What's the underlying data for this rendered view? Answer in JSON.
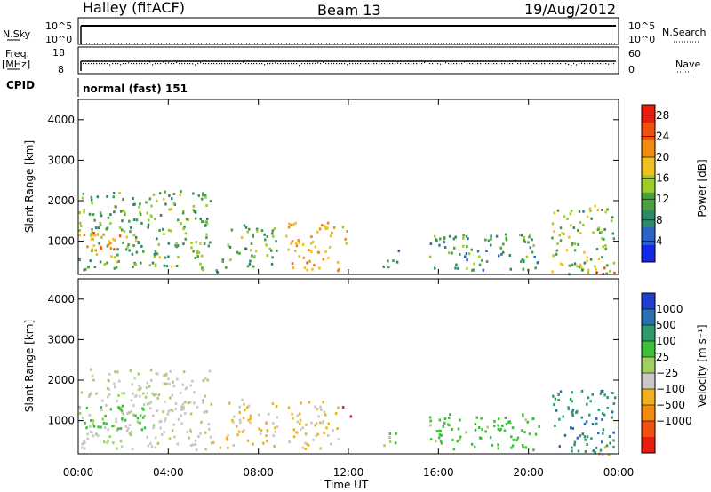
{
  "header": {
    "station": "Halley (fitACF)",
    "beam": "Beam 13",
    "date": "19/Aug/2012"
  },
  "top_panels": {
    "nsky_label": "N.Sky",
    "nsky_ticks": [
      "10^5",
      "10^0"
    ],
    "nsearch_label": "N.Search",
    "nsearch_ticks": [
      "10^5",
      "10^0"
    ],
    "freq_label_1": "Freq.",
    "freq_label_2": "[MHz]",
    "freq_ticks": [
      "18",
      "8"
    ],
    "nave_label": "Nave",
    "nave_ticks": [
      "60",
      "0"
    ],
    "cpid_label": "CPID",
    "cpid_value": "normal (fast) 151"
  },
  "chart_data": [
    {
      "type": "heatmap",
      "title": "",
      "xlabel": "Time UT",
      "ylabel": "Slant Range [km]",
      "x_ticks": [
        "00:00",
        "04:00",
        "08:00",
        "12:00",
        "16:00",
        "20:00",
        "00:00"
      ],
      "xlim_hours": [
        0,
        24
      ],
      "ylim": [
        180,
        4500
      ],
      "y_ticks": [
        1000,
        2000,
        3000,
        4000
      ],
      "colorbar": {
        "label": "Power [dB]",
        "ticks": [
          4,
          8,
          12,
          16,
          20,
          24,
          28
        ],
        "range": [
          0,
          30
        ],
        "colors": [
          "#1428e6",
          "#2a64c4",
          "#2f8a6a",
          "#48a040",
          "#9ccc28",
          "#f0c020",
          "#f08a10",
          "#f05010",
          "#e81e10"
        ]
      },
      "echo_regions": [
        {
          "t0": 0.0,
          "t1": 5.9,
          "r0": 300,
          "r1": 2300,
          "level": 12
        },
        {
          "t0": 0.2,
          "t1": 2.5,
          "r0": 800,
          "r1": 1300,
          "level": 22
        },
        {
          "t0": 5.9,
          "t1": 6.6,
          "r0": 250,
          "r1": 650,
          "level": 10
        },
        {
          "t0": 6.6,
          "t1": 8.8,
          "r0": 400,
          "r1": 1500,
          "level": 12
        },
        {
          "t0": 9.2,
          "t1": 11.6,
          "r0": 300,
          "r1": 1500,
          "level": 20
        },
        {
          "t0": 11.7,
          "t1": 12.1,
          "r0": 900,
          "r1": 1400,
          "level": 16
        },
        {
          "t0": 13.5,
          "t1": 14.2,
          "r0": 300,
          "r1": 800,
          "level": 8
        },
        {
          "t0": 15.5,
          "t1": 20.5,
          "r0": 300,
          "r1": 1200,
          "level": 10
        },
        {
          "t0": 21.0,
          "t1": 23.8,
          "r0": 200,
          "r1": 1900,
          "level": 14
        },
        {
          "t0": 22.8,
          "t1": 23.8,
          "r0": 180,
          "r1": 400,
          "level": 28
        }
      ]
    },
    {
      "type": "heatmap",
      "title": "",
      "xlabel": "Time UT",
      "ylabel": "Slant Range [km]",
      "x_ticks": [
        "00:00",
        "04:00",
        "08:00",
        "12:00",
        "16:00",
        "20:00",
        "00:00"
      ],
      "xlim_hours": [
        0,
        24
      ],
      "ylim": [
        180,
        4500
      ],
      "y_ticks": [
        1000,
        2000,
        3000,
        4000
      ],
      "colorbar": {
        "label": "Velocity [m s⁻¹]",
        "ticks": [
          "1000",
          "500",
          "100",
          "25",
          "−25",
          "−100",
          "−500",
          "−1000"
        ],
        "colors": [
          "#1e3fd0",
          "#2a70b0",
          "#2f9a6a",
          "#3cc03c",
          "#a0d060",
          "#c8c8c8",
          "#f0b020",
          "#f08a10",
          "#f05010",
          "#e81e10"
        ]
      },
      "echo_regions": [
        {
          "t0": 0.0,
          "t1": 5.9,
          "r0": 300,
          "r1": 2300,
          "velocity": -40
        },
        {
          "t0": 0.2,
          "t1": 3.0,
          "r0": 800,
          "r1": 1400,
          "velocity": 60
        },
        {
          "t0": 5.9,
          "t1": 6.6,
          "r0": 250,
          "r1": 650,
          "velocity": -300
        },
        {
          "t0": 6.6,
          "t1": 8.8,
          "r0": 400,
          "r1": 1600,
          "velocity": -100
        },
        {
          "t0": 9.2,
          "t1": 11.6,
          "r0": 300,
          "r1": 1500,
          "velocity": -120
        },
        {
          "t0": 11.7,
          "t1": 12.1,
          "r0": 1100,
          "r1": 1400,
          "velocity": -800
        },
        {
          "t0": 13.5,
          "t1": 14.2,
          "r0": 300,
          "r1": 800,
          "velocity": 40
        },
        {
          "t0": 15.5,
          "t1": 20.5,
          "r0": 300,
          "r1": 1200,
          "velocity": 60
        },
        {
          "t0": 21.0,
          "t1": 23.8,
          "r0": 200,
          "r1": 1800,
          "velocity": 400
        },
        {
          "t0": 22.8,
          "t1": 23.8,
          "r0": 180,
          "r1": 400,
          "velocity": -200
        }
      ]
    }
  ]
}
